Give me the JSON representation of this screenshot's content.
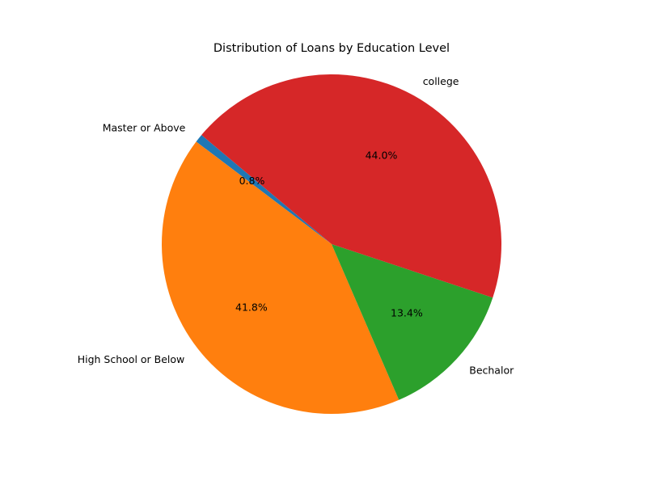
{
  "chart_data": {
    "type": "pie",
    "title": "Distribution of Loans by Education Level",
    "start_angle_deg": 140,
    "direction": "counterclockwise",
    "slices": [
      {
        "label": "Master or Above",
        "value": 0.8,
        "pct_label": "0.8%",
        "color": "#1f77b4"
      },
      {
        "label": "High School or Below",
        "value": 41.8,
        "pct_label": "41.8%",
        "color": "#ff7f0e"
      },
      {
        "label": "Bechalor",
        "value": 13.4,
        "pct_label": "13.4%",
        "color": "#2ca02c"
      },
      {
        "label": "college",
        "value": 44.0,
        "pct_label": "44.0%",
        "color": "#d62728"
      }
    ]
  }
}
